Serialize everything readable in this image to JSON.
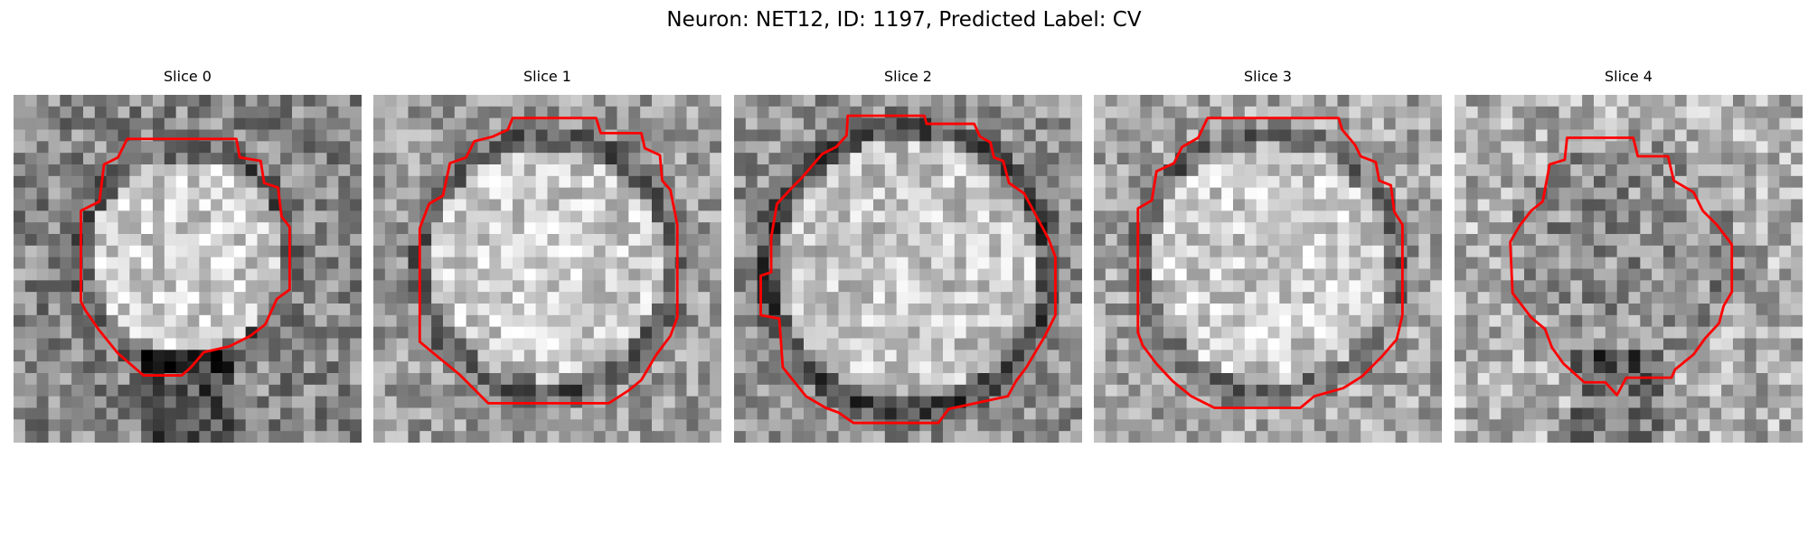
{
  "figure": {
    "title": "Neuron: NET12, ID: 1197, Predicted Label: CV"
  },
  "slices": [
    {
      "title": "Slice 0"
    },
    {
      "title": "Slice 1"
    },
    {
      "title": "Slice 2"
    },
    {
      "title": "Slice 3"
    },
    {
      "title": "Slice 4"
    }
  ],
  "colors": {
    "outline": "#ff0000",
    "colormap": "gray"
  }
}
